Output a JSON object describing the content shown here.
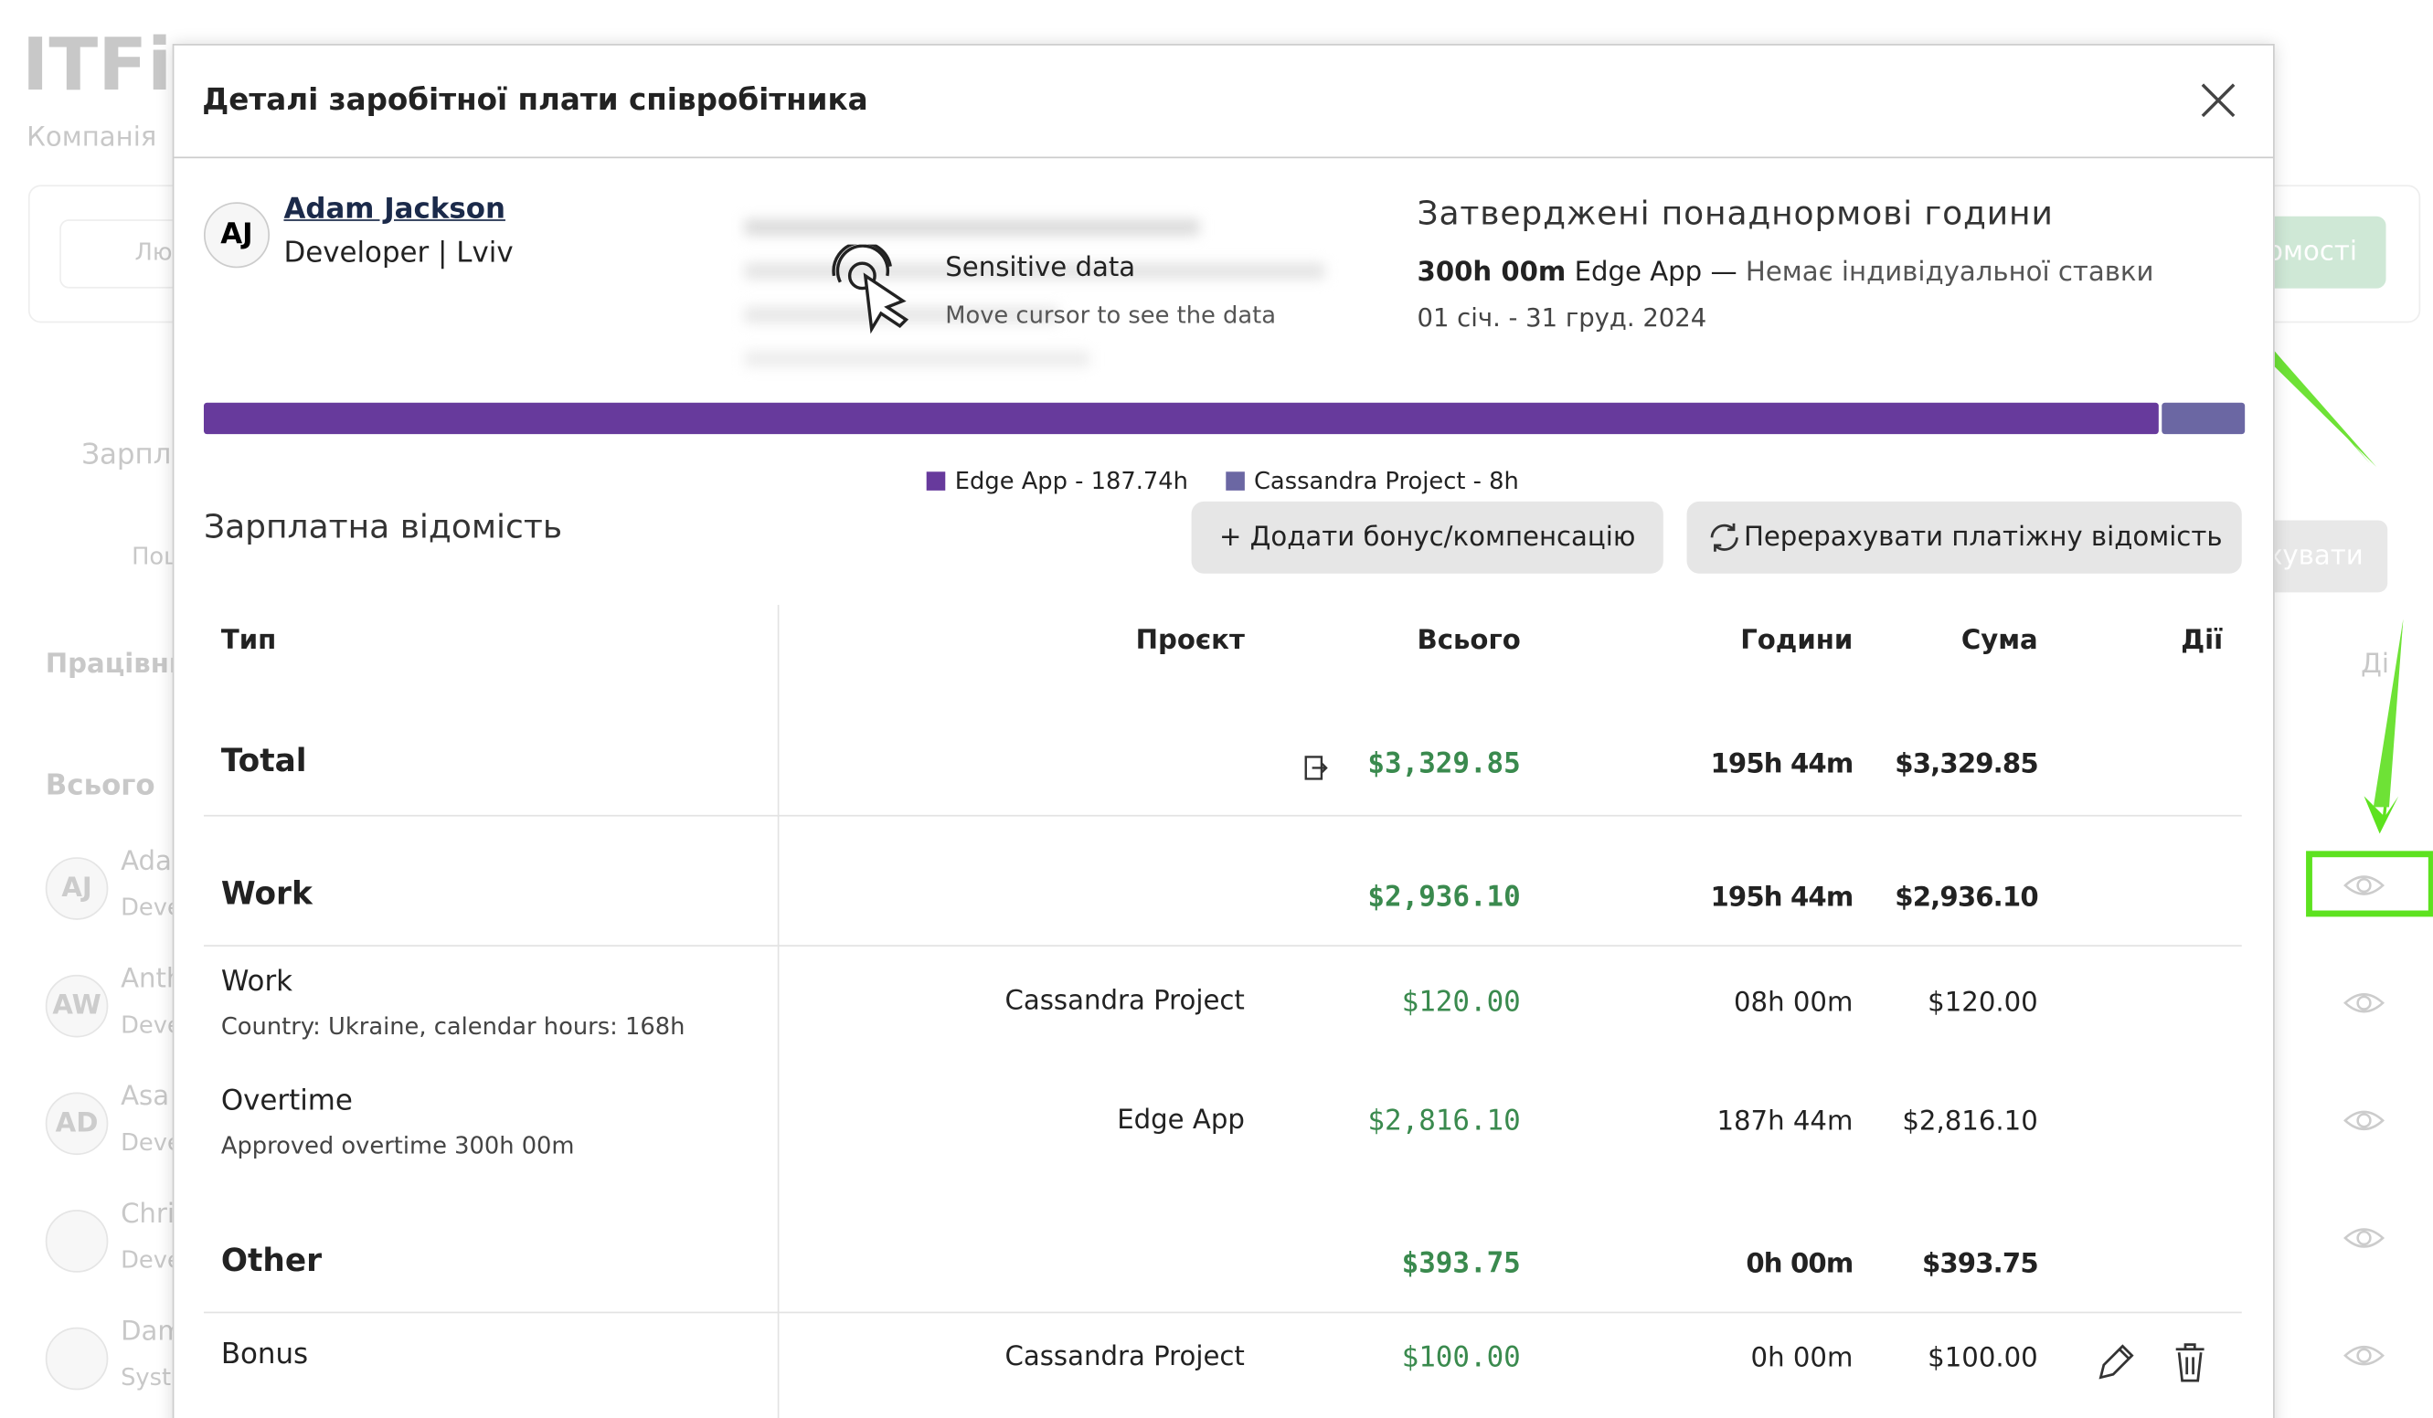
{
  "background": {
    "logo": "ITFi",
    "company": "Компанія",
    "date": "Лют",
    "report_btn": "омості",
    "tab": "Зарпла",
    "search": "Пош",
    "recalc_btn": "хувати",
    "col_employees": "Працівни",
    "col_actions": "Ді",
    "total": "Всього",
    "employees": [
      {
        "initials": "AJ",
        "name": "Ada",
        "role": "Deve"
      },
      {
        "initials": "AW",
        "name": "Anth",
        "role": "Deve"
      },
      {
        "initials": "AD",
        "name": "Asa",
        "role": "Deve"
      },
      {
        "initials": "",
        "name": "Chri",
        "role": "Deve"
      },
      {
        "initials": "",
        "name": "Dam",
        "role": "Syst"
      }
    ]
  },
  "modal": {
    "title": "Деталі заробітної плати співробітника",
    "employee": {
      "initials": "AJ",
      "name": "Adam Jackson",
      "role": "Developer | Lviv"
    },
    "sensitive": {
      "title": "Sensitive data",
      "hint": "Move cursor to see the data"
    },
    "overtime": {
      "title": "Затверджені понаднормові години",
      "hours": "300h 00m",
      "project": "Edge App —",
      "rate": "Немає індивідуальної ставки",
      "period": "01 січ. - 31 груд. 2024"
    },
    "progress": {
      "segments": [
        {
          "label": "Edge App - 187.74h",
          "hours": 187.74,
          "color": "#673a9c"
        },
        {
          "label": "Cassandra Project - 8h",
          "hours": 8,
          "color": "#6b67a3"
        }
      ]
    },
    "section": "Зарплатна відомість",
    "buttons": {
      "add": "+ Додати бонус/компенсацію",
      "recalc": "Перерахувати платіжну відомість"
    },
    "table": {
      "headers": [
        "Тип",
        "Проєкт",
        "Всього",
        "Години",
        "Сума",
        "Дії"
      ],
      "rows": [
        {
          "type": "Total",
          "total": "$3,329.85",
          "hours": "195h 44m",
          "sum": "$3,329.85",
          "kind": "group"
        },
        {
          "type": "Work",
          "total": "$2,936.10",
          "hours": "195h 44m",
          "sum": "$2,936.10",
          "kind": "group"
        },
        {
          "type": "Work",
          "sub": "Country: Ukraine, calendar hours: 168h",
          "project": "Cassandra Project",
          "total": "$120.00",
          "hours": "08h 00m",
          "sum": "$120.00",
          "kind": "item"
        },
        {
          "type": "Overtime",
          "sub": "Approved overtime 300h 00m",
          "project": "Edge App",
          "total": "$2,816.10",
          "hours": "187h 44m",
          "sum": "$2,816.10",
          "kind": "item"
        },
        {
          "type": "Other",
          "total": "$393.75",
          "hours": "0h 00m",
          "sum": "$393.75",
          "kind": "group"
        },
        {
          "type": "Bonus",
          "project": "Cassandra Project",
          "total": "$100.00",
          "hours": "0h 00m",
          "sum": "$100.00",
          "kind": "item",
          "actions": true
        }
      ]
    }
  }
}
